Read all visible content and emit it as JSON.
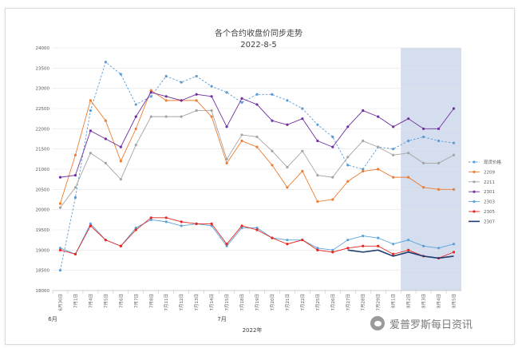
{
  "watermark": {
    "text": "爱普罗斯每日资讯"
  },
  "chart_data": {
    "type": "line",
    "title": "各个合约收盘价同步走势",
    "subtitle": "2022-8-5",
    "xlabel": "2022年",
    "month_labels": [
      "6月",
      "7月"
    ],
    "ylim": [
      18000,
      24000
    ],
    "yticks": [
      18000,
      18500,
      19000,
      19500,
      20000,
      20500,
      21000,
      21500,
      22000,
      22500,
      23000,
      23500,
      24000
    ],
    "categories": [
      "6月30日",
      "7月1日",
      "7月4日",
      "7月5日",
      "7月6日",
      "7月7日",
      "7月8日",
      "7月11日",
      "7月12日",
      "7月13日",
      "7月14日",
      "7月15日",
      "7月18日",
      "7月19日",
      "7月20日",
      "7月21日",
      "7月22日",
      "7月25日",
      "7月26日",
      "7月27日",
      "7月28日",
      "7月29日",
      "8月1日",
      "8月2日",
      "8月3日",
      "8月4日",
      "8月5日"
    ],
    "highlight_range": [
      23,
      26
    ],
    "colors": {
      "highlight": "#d5deee",
      "grid": "#e3e3e3"
    },
    "series": [
      {
        "name": "现货价格",
        "color": "#5b9bd5",
        "dashed": true,
        "marker": "circle",
        "values": [
          18500,
          20300,
          22450,
          23650,
          23350,
          22600,
          22800,
          23300,
          23150,
          23300,
          23050,
          22900,
          22650,
          22850,
          22850,
          22700,
          22500,
          22100,
          21800,
          21100,
          21000,
          21550,
          21500,
          21700,
          21800,
          21700,
          21650
        ]
      },
      {
        "name": "2209",
        "color": "#ed7d31",
        "dashed": false,
        "marker": "circle",
        "values": [
          20150,
          21350,
          22700,
          22200,
          21200,
          22000,
          22950,
          22700,
          22700,
          22700,
          22300,
          21150,
          21700,
          21550,
          21100,
          20550,
          20950,
          20200,
          20250,
          20700,
          20950,
          21000,
          20800,
          20800,
          20550,
          20500,
          20500
        ]
      },
      {
        "name": "2211",
        "color": "#a5a5a5",
        "dashed": false,
        "marker": "circle",
        "values": [
          20050,
          20550,
          21400,
          21150,
          20750,
          21600,
          22300,
          22300,
          22300,
          22450,
          22450,
          21250,
          21850,
          21800,
          21450,
          21050,
          21450,
          20850,
          20800,
          21300,
          21700,
          21550,
          21350,
          21400,
          21150,
          21150,
          21350
        ]
      },
      {
        "name": "2301",
        "color": "#7030a0",
        "dashed": false,
        "marker": "circle",
        "values": [
          20800,
          20850,
          21950,
          21750,
          21550,
          22300,
          22900,
          22800,
          22700,
          22850,
          22800,
          22050,
          22750,
          22600,
          22200,
          22100,
          22250,
          21700,
          21550,
          22050,
          22450,
          22300,
          22050,
          22250,
          22000,
          22000,
          22500
        ]
      },
      {
        "name": "2303",
        "color": "#5ba3d9",
        "dashed": false,
        "marker": "circle",
        "values": [
          19050,
          18900,
          19650,
          19250,
          19100,
          19550,
          19750,
          19700,
          19600,
          19650,
          19600,
          19100,
          19550,
          19550,
          19300,
          19250,
          19250,
          19050,
          19000,
          19250,
          19350,
          19300,
          19150,
          19250,
          19100,
          19050,
          19150
        ]
      },
      {
        "name": "2305",
        "color": "#e8251e",
        "dashed": false,
        "marker": "circle",
        "values": [
          19000,
          18900,
          19600,
          19250,
          19100,
          19500,
          19800,
          19800,
          19700,
          19650,
          19650,
          19150,
          19600,
          19500,
          19300,
          19150,
          19250,
          19000,
          18950,
          19050,
          19100,
          19100,
          18900,
          19000,
          18850,
          18800,
          18950
        ]
      },
      {
        "name": "2307",
        "color": "#1f3c6e",
        "dashed": false,
        "marker": "none",
        "start_index": 19,
        "values": [
          null,
          null,
          null,
          null,
          null,
          null,
          null,
          null,
          null,
          null,
          null,
          null,
          null,
          null,
          null,
          null,
          null,
          null,
          null,
          19000,
          18950,
          19000,
          18850,
          18950,
          18850,
          18800,
          18850
        ]
      }
    ]
  }
}
